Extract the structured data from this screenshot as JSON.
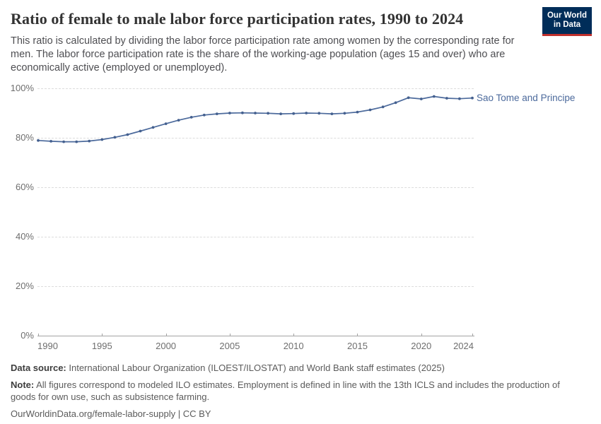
{
  "header": {
    "title": "Ratio of female to male labor force participation rates, 1990 to 2024",
    "subtitle": "This ratio is calculated by dividing the labor force participation rate among women by the corresponding rate for men. The labor force participation rate is the share of the working-age population (ages 15 and over) who are economically active (employed or unemployed).",
    "logo": {
      "line1": "Our World",
      "line2": "in Data",
      "bg_color": "#002d59",
      "accent_color": "#c0302d"
    }
  },
  "chart_data": {
    "type": "line",
    "title": "Ratio of female to male labor force participation rates, 1990 to 2024",
    "series_label": "Sao Tome and Principe",
    "x": [
      1990,
      1991,
      1992,
      1993,
      1994,
      1995,
      1996,
      1997,
      1998,
      1999,
      2000,
      2001,
      2002,
      2003,
      2004,
      2005,
      2006,
      2007,
      2008,
      2009,
      2010,
      2011,
      2012,
      2013,
      2014,
      2015,
      2016,
      2017,
      2018,
      2019,
      2020,
      2021,
      2022,
      2023,
      2024
    ],
    "values": [
      78.9,
      78.6,
      78.4,
      78.4,
      78.7,
      79.3,
      80.2,
      81.3,
      82.7,
      84.2,
      85.7,
      87.1,
      88.3,
      89.2,
      89.7,
      90.0,
      90.1,
      90.0,
      89.9,
      89.7,
      89.8,
      90.0,
      89.9,
      89.7,
      89.9,
      90.4,
      91.3,
      92.5,
      94.2,
      96.2,
      95.7,
      96.7,
      96.0,
      95.8,
      96.1
    ],
    "unit": "%",
    "xlim": [
      1990,
      2024
    ],
    "ylim": [
      0,
      100
    ],
    "y_ticks": [
      0,
      20,
      40,
      60,
      80,
      100
    ],
    "x_ticks": [
      1990,
      1995,
      2000,
      2005,
      2010,
      2015,
      2020,
      2024
    ],
    "grid": true,
    "legend_position": "right-of-line",
    "line_color": "#4c6a9c",
    "marker_color": "#44608f",
    "label_color": "#4c6a9c"
  },
  "footer": {
    "source_label": "Data source:",
    "source_text": "International Labour Organization (ILOEST/ILOSTAT) and World Bank staff estimates (2025)",
    "note_label": "Note:",
    "note_text": "All figures correspond to modeled ILO estimates. Employment is defined in line with the 13th ICLS and includes the production of goods for own use, such as subsistence farming.",
    "url_line": "OurWorldinData.org/female-labor-supply | CC BY"
  }
}
